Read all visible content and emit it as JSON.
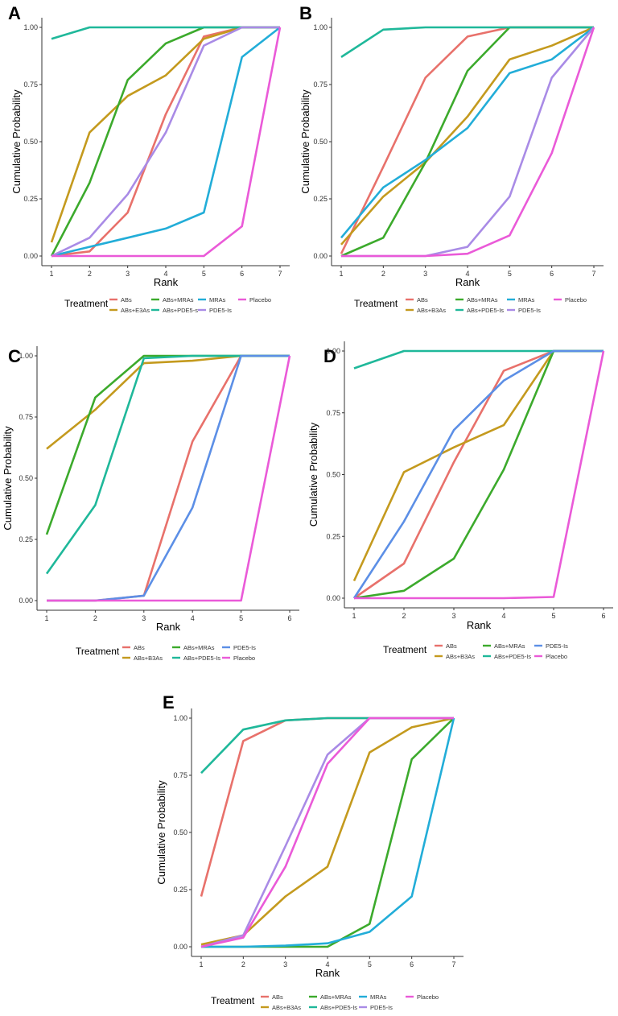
{
  "colors": {
    "ABs": "#E8716B",
    "ABs+B3As": "#C49A1E",
    "ABs+MRAs": "#3CAA2C",
    "ABs+PDE5-Is": "#1FB89A",
    "MRAs": "#22ADD8",
    "PDE5-Is_A": "#A98BE6",
    "PDE5-Is_B": "#A98BE6",
    "PDE5-Is_CD": "#5C8FE6",
    "Placebo": "#EA5AD8"
  },
  "chart_data": [
    {
      "panel": "A",
      "type": "line",
      "xlabel": "Rank",
      "ylabel": "Cumulative Probability",
      "x": [
        1,
        2,
        3,
        4,
        5,
        6,
        7
      ],
      "xlim": [
        1,
        7
      ],
      "ylim": [
        0,
        1
      ],
      "yticks": [
        "0.00",
        "0.25",
        "0.50",
        "0.75",
        "1.00"
      ],
      "legend_title": "Treatment",
      "series": [
        {
          "name": "ABs",
          "colorKey": "ABs",
          "values": [
            0.0,
            0.02,
            0.19,
            0.62,
            0.96,
            1.0,
            1.0
          ]
        },
        {
          "name": "ABs+E3As",
          "colorKey": "ABs+B3As",
          "values": [
            0.06,
            0.54,
            0.7,
            0.79,
            0.95,
            1.0,
            1.0
          ]
        },
        {
          "name": "ABs+MRAs",
          "colorKey": "ABs+MRAs",
          "values": [
            0.0,
            0.32,
            0.77,
            0.93,
            1.0,
            1.0,
            1.0
          ]
        },
        {
          "name": "ABs+PDE5-s",
          "colorKey": "ABs+PDE5-Is",
          "values": [
            0.95,
            1.0,
            1.0,
            1.0,
            1.0,
            1.0,
            1.0
          ]
        },
        {
          "name": "MRAs",
          "colorKey": "MRAs",
          "values": [
            0.0,
            0.04,
            0.08,
            0.12,
            0.19,
            0.87,
            1.0
          ]
        },
        {
          "name": "PDE5-Is",
          "colorKey": "PDE5-Is_A",
          "values": [
            0.0,
            0.08,
            0.27,
            0.54,
            0.92,
            1.0,
            1.0
          ]
        },
        {
          "name": "Placebo",
          "colorKey": "Placebo",
          "values": [
            0.0,
            0.0,
            0.0,
            0.0,
            0.0,
            0.13,
            1.0
          ]
        }
      ]
    },
    {
      "panel": "B",
      "type": "line",
      "xlabel": "Rank",
      "ylabel": "Cumulative Probability",
      "x": [
        1,
        2,
        3,
        4,
        5,
        6,
        7
      ],
      "xlim": [
        1,
        7
      ],
      "ylim": [
        0,
        1
      ],
      "yticks": [
        "0.00",
        "0.25",
        "0.50",
        "0.75",
        "1.00"
      ],
      "legend_title": "Treatment",
      "series": [
        {
          "name": "ABs",
          "colorKey": "ABs",
          "values": [
            0.01,
            0.39,
            0.78,
            0.96,
            1.0,
            1.0,
            1.0
          ]
        },
        {
          "name": "ABs+B3As",
          "colorKey": "ABs+B3As",
          "values": [
            0.05,
            0.26,
            0.41,
            0.61,
            0.86,
            0.92,
            1.0
          ]
        },
        {
          "name": "ABs+MRAs",
          "colorKey": "ABs+MRAs",
          "values": [
            0.0,
            0.08,
            0.41,
            0.81,
            1.0,
            1.0,
            1.0
          ]
        },
        {
          "name": "ABs+PDE5-Is",
          "colorKey": "ABs+PDE5-Is",
          "values": [
            0.87,
            0.99,
            1.0,
            1.0,
            1.0,
            1.0,
            1.0
          ]
        },
        {
          "name": "MRAs",
          "colorKey": "MRAs",
          "values": [
            0.08,
            0.3,
            0.42,
            0.56,
            0.8,
            0.86,
            1.0
          ]
        },
        {
          "name": "PDE5-Is",
          "colorKey": "PDE5-Is_B",
          "values": [
            0.0,
            0.0,
            0.0,
            0.04,
            0.26,
            0.78,
            1.0
          ]
        },
        {
          "name": "Placebo",
          "colorKey": "Placebo",
          "values": [
            0.0,
            0.0,
            0.0,
            0.01,
            0.09,
            0.45,
            1.0
          ]
        }
      ]
    },
    {
      "panel": "C",
      "type": "line",
      "xlabel": "Rank",
      "ylabel": "Cumulative Probability",
      "x": [
        1,
        2,
        3,
        4,
        5,
        6
      ],
      "xlim": [
        1,
        6
      ],
      "ylim": [
        0,
        1
      ],
      "yticks": [
        "0.00",
        "0.25",
        "0.50",
        "0.75",
        "1.00"
      ],
      "legend_title": "Treatment",
      "series": [
        {
          "name": "ABs",
          "colorKey": "ABs",
          "values": [
            0.0,
            0.0,
            0.02,
            0.65,
            1.0,
            1.0
          ]
        },
        {
          "name": "ABs+B3As",
          "colorKey": "ABs+B3As",
          "values": [
            0.62,
            0.78,
            0.97,
            0.98,
            1.0,
            1.0
          ]
        },
        {
          "name": "ABs+MRAs",
          "colorKey": "ABs+MRAs",
          "values": [
            0.27,
            0.83,
            1.0,
            1.0,
            1.0,
            1.0
          ]
        },
        {
          "name": "ABs+PDE5-Is",
          "colorKey": "ABs+PDE5-Is",
          "values": [
            0.11,
            0.39,
            0.99,
            1.0,
            1.0,
            1.0
          ]
        },
        {
          "name": "PDE5-Is",
          "colorKey": "PDE5-Is_CD",
          "values": [
            0.0,
            0.0,
            0.02,
            0.38,
            1.0,
            1.0
          ]
        },
        {
          "name": "Placebo",
          "colorKey": "Placebo",
          "values": [
            0.0,
            0.0,
            0.0,
            0.0,
            0.0,
            1.0
          ]
        }
      ]
    },
    {
      "panel": "D",
      "type": "line",
      "xlabel": "Rank",
      "ylabel": "Cumulative Probability",
      "x": [
        1,
        2,
        3,
        4,
        5,
        6
      ],
      "xlim": [
        1,
        6
      ],
      "ylim": [
        0,
        1
      ],
      "yticks": [
        "0.00",
        "0.25",
        "0.50",
        "0.75",
        "1.00"
      ],
      "legend_title": "Treatment",
      "series": [
        {
          "name": "ABs",
          "colorKey": "ABs",
          "values": [
            0.0,
            0.14,
            0.55,
            0.92,
            1.0,
            1.0
          ]
        },
        {
          "name": "ABs+B3As",
          "colorKey": "ABs+B3As",
          "values": [
            0.07,
            0.51,
            0.61,
            0.7,
            1.0,
            1.0
          ]
        },
        {
          "name": "ABs+MRAs",
          "colorKey": "ABs+MRAs",
          "values": [
            0.0,
            0.03,
            0.16,
            0.52,
            1.0,
            1.0
          ]
        },
        {
          "name": "ABs+PDE5-Is",
          "colorKey": "ABs+PDE5-Is",
          "values": [
            0.93,
            1.0,
            1.0,
            1.0,
            1.0,
            1.0
          ]
        },
        {
          "name": "PDE5-Is",
          "colorKey": "PDE5-Is_CD",
          "values": [
            0.0,
            0.31,
            0.68,
            0.88,
            1.0,
            1.0
          ]
        },
        {
          "name": "Placebo",
          "colorKey": "Placebo",
          "values": [
            0.0,
            0.0,
            0.0,
            0.0,
            0.005,
            1.0
          ]
        }
      ]
    },
    {
      "panel": "E",
      "type": "line",
      "xlabel": "Rank",
      "ylabel": "Cumulative Probability",
      "x": [
        1,
        2,
        3,
        4,
        5,
        6,
        7
      ],
      "xlim": [
        1,
        7
      ],
      "ylim": [
        0,
        1
      ],
      "yticks": [
        "0.00",
        "0.25",
        "0.50",
        "0.75",
        "1.00"
      ],
      "legend_title": "Treatment",
      "series": [
        {
          "name": "ABs",
          "colorKey": "ABs",
          "values": [
            0.22,
            0.9,
            0.99,
            1.0,
            1.0,
            1.0,
            1.0
          ]
        },
        {
          "name": "ABs+B3As",
          "colorKey": "ABs+B3As",
          "values": [
            0.01,
            0.05,
            0.22,
            0.35,
            0.85,
            0.96,
            1.0
          ]
        },
        {
          "name": "ABs+MRAs",
          "colorKey": "ABs+MRAs",
          "values": [
            0.0,
            0.0,
            0.0,
            0.0,
            0.1,
            0.82,
            1.0
          ]
        },
        {
          "name": "ABs+PDE5-Is",
          "colorKey": "ABs+PDE5-Is",
          "values": [
            0.76,
            0.95,
            0.99,
            1.0,
            1.0,
            1.0,
            1.0
          ]
        },
        {
          "name": "MRAs",
          "colorKey": "MRAs",
          "values": [
            0.0,
            0.0,
            0.005,
            0.015,
            0.065,
            0.22,
            1.0
          ]
        },
        {
          "name": "PDE5-Is",
          "colorKey": "PDE5-Is_A",
          "values": [
            0.0,
            0.05,
            0.44,
            0.84,
            1.0,
            1.0,
            1.0
          ]
        },
        {
          "name": "Placebo",
          "colorKey": "Placebo",
          "values": [
            0.0,
            0.04,
            0.35,
            0.8,
            1.0,
            1.0,
            1.0
          ]
        }
      ]
    }
  ]
}
